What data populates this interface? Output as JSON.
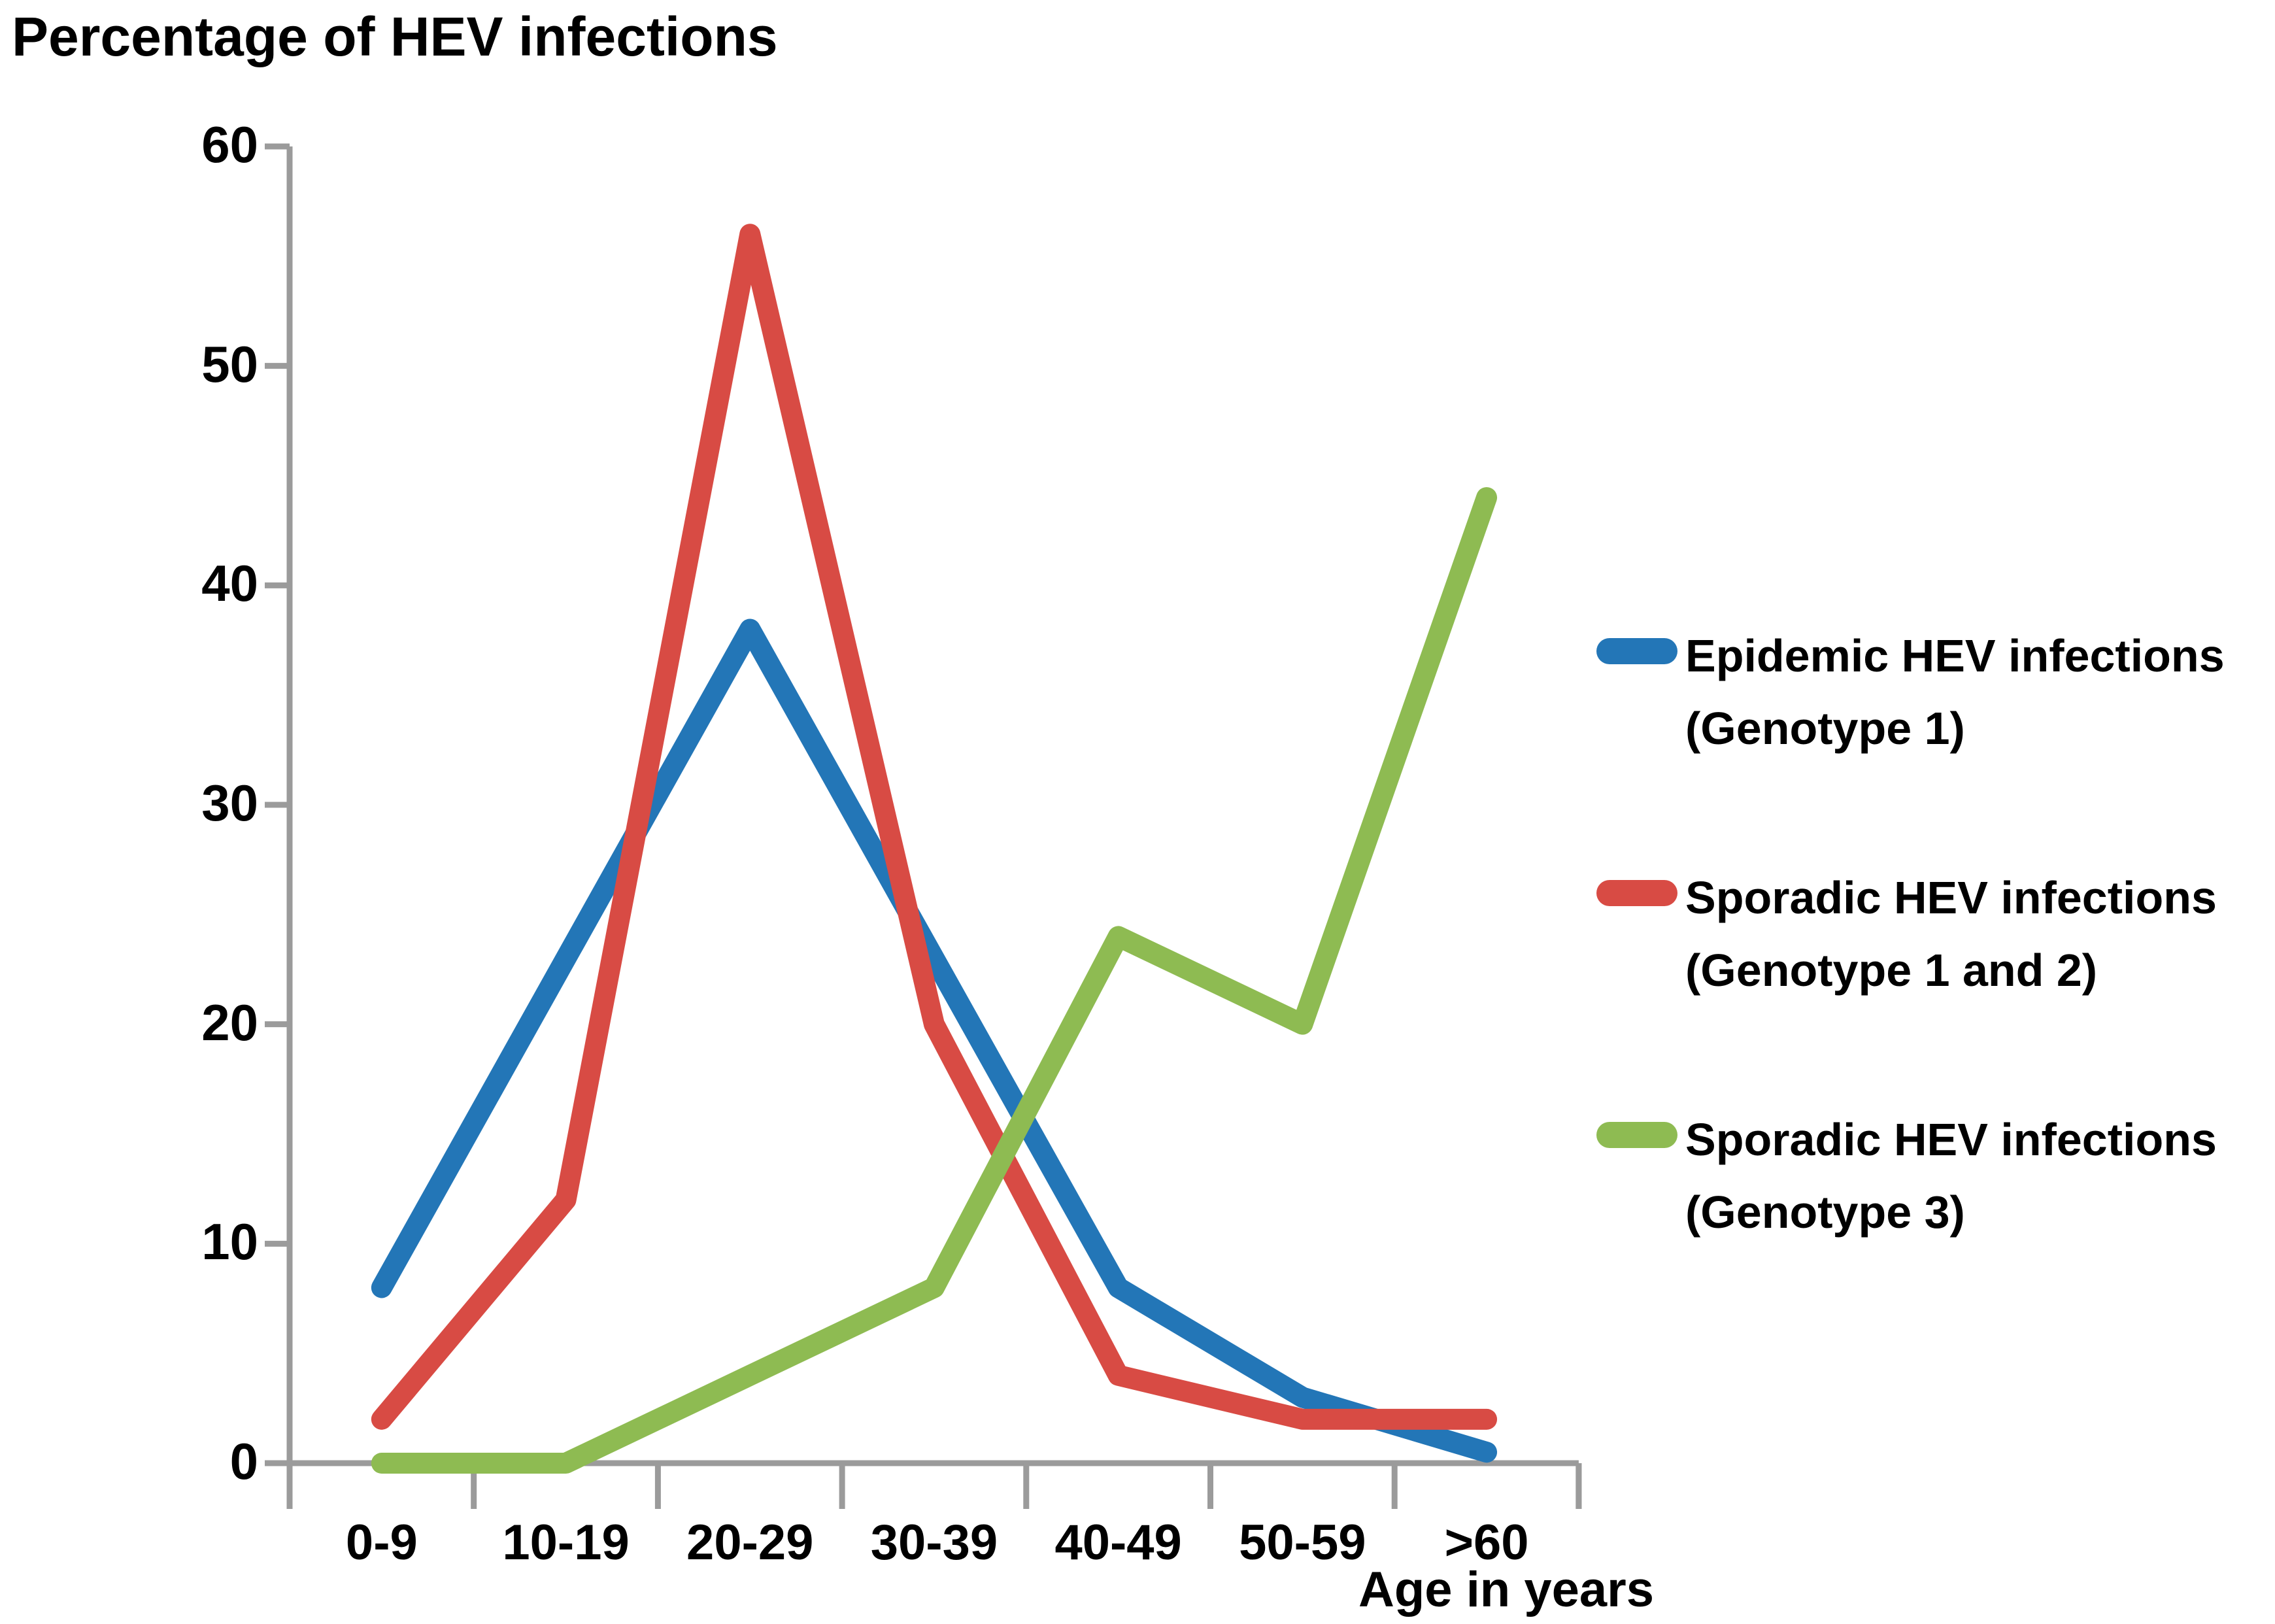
{
  "chart_data": {
    "type": "line",
    "title": "Percentage of HEV infections",
    "xlabel": "Age in years",
    "ylabel": "",
    "categories": [
      "0-9",
      "10-19",
      "20-29",
      "30-39",
      "40-49",
      "50-59",
      ">60"
    ],
    "yticks": [
      0,
      10,
      20,
      30,
      40,
      50,
      60
    ],
    "ylim": [
      0,
      60
    ],
    "grid": false,
    "legend_position": "right-middle",
    "axis_color": "#9B9B9B",
    "text_color": "#000000",
    "series": [
      {
        "name": "Epidemic HEV infections (Genotype 1)",
        "legend_lines": [
          "Epidemic HEV infections",
          "(Genotype 1)"
        ],
        "color": "#2376B7",
        "values": [
          8,
          23,
          38,
          23,
          8,
          3,
          0.5
        ]
      },
      {
        "name": "Sporadic HEV infections (Genotype 1 and 2)",
        "legend_lines": [
          "Sporadic HEV infections",
          "(Genotype 1 and 2)"
        ],
        "color": "#D84B44",
        "values": [
          2,
          12,
          56,
          20,
          4,
          2,
          2
        ]
      },
      {
        "name": "Sporadic HEV infections (Genotype 3)",
        "legend_lines": [
          "Sporadic HEV infections",
          "(Genotype 3)"
        ],
        "color": "#8EBB52",
        "values": [
          0,
          0,
          4,
          8,
          24,
          20,
          44
        ]
      }
    ]
  }
}
